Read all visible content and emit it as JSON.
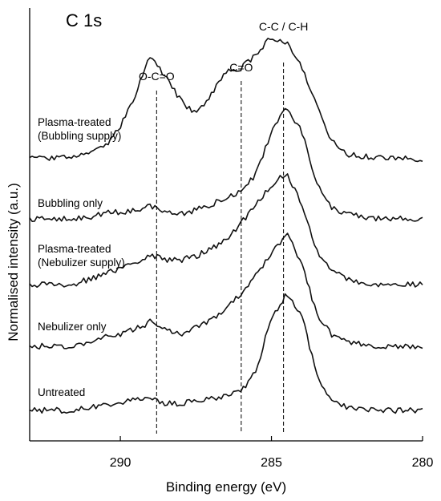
{
  "chart_data": {
    "type": "line",
    "title": "C 1s",
    "xlabel": "Binding energy (eV)",
    "ylabel": "Normalised intensity (a.u.)",
    "xlim": [
      293,
      280
    ],
    "x_reversed": true,
    "xticks": [
      {
        "value": 290,
        "label": "290"
      },
      {
        "value": 285,
        "label": "285"
      },
      {
        "value": 280,
        "label": "280"
      }
    ],
    "grid": false,
    "peak_lines": [
      {
        "label": "O-C=O",
        "energy": 288.8
      },
      {
        "label": "C=O",
        "energy": 286.0
      },
      {
        "label": "C-C / C-H",
        "energy": 284.6
      }
    ],
    "x": [
      293.0,
      292.5,
      292.0,
      291.5,
      291.0,
      290.5,
      290.0,
      289.5,
      289.0,
      288.5,
      288.0,
      287.5,
      287.0,
      286.5,
      286.0,
      285.5,
      285.0,
      284.5,
      284.0,
      283.5,
      283.0,
      282.5,
      282.0,
      281.5,
      281.0,
      280.5,
      280.0
    ],
    "series": [
      {
        "name": "Plasma-treated\n(Bubbling supply)",
        "values": [
          0.0,
          0.0,
          0.01,
          0.02,
          0.04,
          0.1,
          0.28,
          0.55,
          0.9,
          0.7,
          0.5,
          0.38,
          0.55,
          0.75,
          0.78,
          0.9,
          1.05,
          1.0,
          0.8,
          0.45,
          0.15,
          0.04,
          0.02,
          0.01,
          0.0,
          0.0,
          0.0
        ]
      },
      {
        "name": "Bubbling only",
        "values": [
          0.0,
          0.0,
          0.0,
          0.0,
          0.02,
          0.05,
          0.06,
          0.08,
          0.12,
          0.06,
          0.04,
          0.08,
          0.13,
          0.18,
          0.25,
          0.4,
          0.78,
          1.0,
          0.78,
          0.3,
          0.1,
          0.04,
          0.02,
          0.0,
          0.0,
          0.0,
          0.0
        ]
      },
      {
        "name": "Plasma-treated\n(Nebulizer supply)",
        "values": [
          0.0,
          0.0,
          0.0,
          0.01,
          0.05,
          0.1,
          0.14,
          0.2,
          0.26,
          0.22,
          0.22,
          0.25,
          0.32,
          0.4,
          0.55,
          0.72,
          0.88,
          1.0,
          0.72,
          0.3,
          0.12,
          0.05,
          0.02,
          0.0,
          0.0,
          0.0,
          0.0
        ]
      },
      {
        "name": "Nebulizer only",
        "values": [
          0.0,
          0.0,
          0.0,
          0.0,
          0.04,
          0.08,
          0.11,
          0.15,
          0.22,
          0.14,
          0.11,
          0.17,
          0.24,
          0.33,
          0.47,
          0.64,
          0.82,
          1.0,
          0.75,
          0.28,
          0.1,
          0.04,
          0.02,
          0.0,
          0.0,
          0.0,
          0.0
        ]
      },
      {
        "name": "Untreated",
        "values": [
          0.0,
          0.0,
          0.0,
          0.0,
          0.03,
          0.05,
          0.07,
          0.09,
          0.1,
          0.06,
          0.06,
          0.08,
          0.1,
          0.12,
          0.16,
          0.35,
          0.8,
          1.0,
          0.82,
          0.3,
          0.08,
          0.03,
          0.01,
          0.0,
          0.0,
          0.0,
          0.0
        ]
      }
    ]
  }
}
